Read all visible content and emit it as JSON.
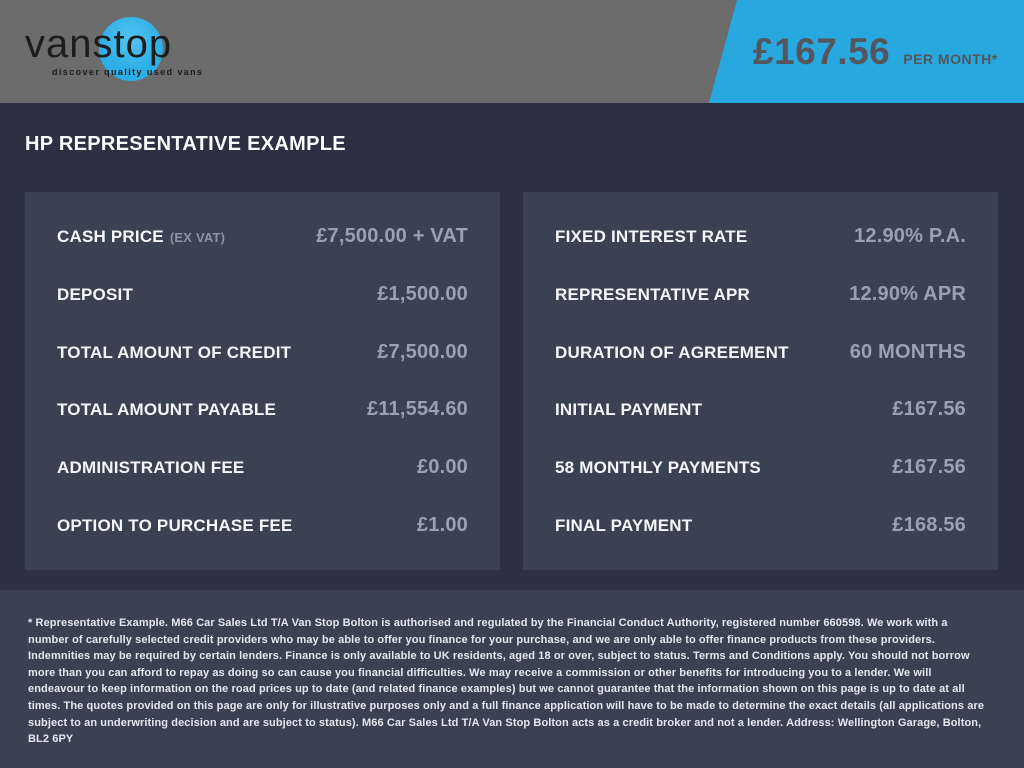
{
  "header": {
    "logo": {
      "brand": "vanstop",
      "tagline": "discover quality used vans"
    },
    "price_banner": {
      "amount": "£167.56",
      "period": "PER MONTH*"
    }
  },
  "title": "HP REPRESENTATIVE EXAMPLE",
  "panels": {
    "left": {
      "rows": [
        {
          "label": "CASH PRICE",
          "sublabel": "(EX VAT)",
          "value": "£7,500.00 + VAT"
        },
        {
          "label": "DEPOSIT",
          "value": "£1,500.00"
        },
        {
          "label": "TOTAL AMOUNT OF CREDIT",
          "value": "£7,500.00"
        },
        {
          "label": "TOTAL AMOUNT PAYABLE",
          "value": "£11,554.60"
        },
        {
          "label": "ADMINISTRATION FEE",
          "value": "£0.00"
        },
        {
          "label": "OPTION TO PURCHASE FEE",
          "value": "£1.00"
        }
      ]
    },
    "right": {
      "rows": [
        {
          "label": "FIXED INTEREST RATE",
          "value": "12.90% P.A."
        },
        {
          "label": "REPRESENTATIVE APR",
          "value": "12.90% APR"
        },
        {
          "label": "DURATION OF AGREEMENT",
          "value": "60 MONTHS"
        },
        {
          "label": "INITIAL PAYMENT",
          "value": "£167.56"
        },
        {
          "label": "58 MONTHLY PAYMENTS",
          "value": "£167.56"
        },
        {
          "label": "FINAL PAYMENT",
          "value": "£168.56"
        }
      ]
    }
  },
  "disclaimer": "* Representative Example. M66 Car Sales Ltd T/A Van Stop Bolton is authorised and regulated by the Financial Conduct Authority, registered number 660598. We work with a number of carefully selected credit providers who may be able to offer you finance for your purchase, and we are only able to offer finance products from these providers. Indemnities may be required by certain lenders. Finance is only available to UK residents, aged 18 or over, subject to status. Terms and Conditions apply. You should not borrow more than you can afford to repay as doing so can cause you financial difficulties. We may receive a commission or other benefits for introducing you to a lender. We will endeavour to keep information on the road prices up to date (and related finance examples) but we cannot guarantee that the information shown on this page is up to date at all times. The quotes provided on this page are only for illustrative purposes only and a full finance application will have to be made to determine the exact details (all applications are subject to an underwriting decision and are subject to status). M66 Car Sales Ltd T/A Van Stop Bolton acts as a credit broker and not a lender. Address: Wellington Garage, Bolton, BL2 6PY",
  "colors": {
    "brand_blue": "#27a9e0",
    "header_gray": "#6c6c6c",
    "page_background": "#2b3142",
    "panel_background": "#3a4152",
    "value_text": "#99a1b3",
    "label_text": "#f4f6fa",
    "price_text": "#55565c"
  }
}
